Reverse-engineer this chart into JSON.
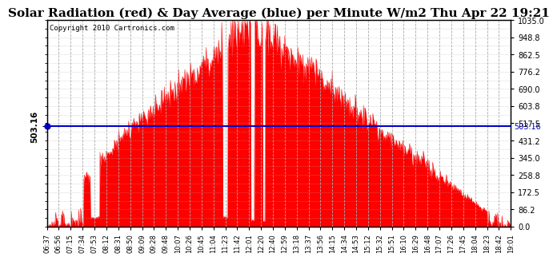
{
  "title": "Solar Radiation (red) & Day Average (blue) per Minute W/m2 Thu Apr 22 19:21",
  "copyright_text": "Copyright 2010 Cartronics.com",
  "y_right_labels": [
    1035.0,
    948.8,
    862.5,
    776.2,
    690.0,
    603.8,
    517.5,
    431.2,
    345.0,
    258.8,
    172.5,
    86.2,
    0.0
  ],
  "y_left_label": "503.16",
  "day_average": 503.16,
  "y_max": 1035.0,
  "y_min": 0.0,
  "x_labels": [
    "06:37",
    "06:56",
    "07:15",
    "07:34",
    "07:53",
    "08:12",
    "08:31",
    "08:50",
    "09:09",
    "09:28",
    "09:48",
    "10:07",
    "10:26",
    "10:45",
    "11:04",
    "11:23",
    "11:42",
    "12:01",
    "12:20",
    "12:40",
    "12:59",
    "13:18",
    "13:37",
    "13:56",
    "14:15",
    "14:34",
    "14:53",
    "15:12",
    "15:32",
    "15:51",
    "16:10",
    "16:29",
    "16:48",
    "17:07",
    "17:26",
    "17:45",
    "18:04",
    "18:23",
    "18:42",
    "19:01"
  ],
  "fill_color": "#FF0000",
  "line_color": "#FF0000",
  "avg_line_color": "#0000CC",
  "grid_color": "#AAAAAA",
  "background_color": "#FFFFFF",
  "title_fontsize": 11,
  "annotation_fontsize": 8,
  "peak_value": 1035.0
}
